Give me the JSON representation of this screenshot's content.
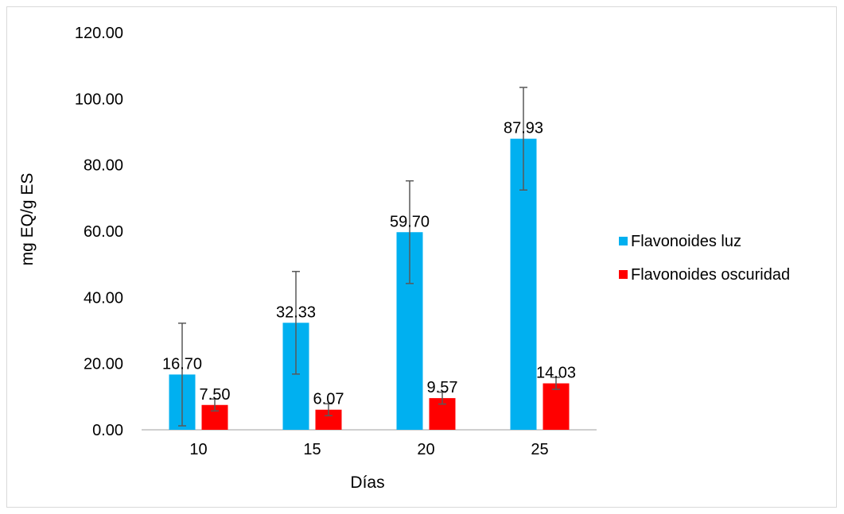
{
  "chart_data": {
    "type": "bar",
    "title": "",
    "xlabel": "Días",
    "ylabel": "mg EQ/g ES",
    "ylim": [
      0,
      120
    ],
    "yticks": [
      "0.00",
      "20.00",
      "40.00",
      "60.00",
      "80.00",
      "100.00",
      "120.00"
    ],
    "categories": [
      "10",
      "15",
      "20",
      "25"
    ],
    "grid": false,
    "legend_position": "right",
    "series": [
      {
        "name": "Flavonoides luz",
        "color": "#00b0f0",
        "values": [
          16.7,
          32.33,
          59.7,
          87.93
        ],
        "labels": [
          "16.70",
          "32.33",
          "59.70",
          "87.93"
        ],
        "error": [
          15.5,
          15.5,
          15.5,
          15.5
        ]
      },
      {
        "name": "Flavonoides oscuridad",
        "color": "#ff0000",
        "values": [
          7.5,
          6.07,
          9.57,
          14.03
        ],
        "labels": [
          "7.50",
          "6.07",
          "9.57",
          "14.03"
        ],
        "error": [
          1.8,
          1.8,
          1.8,
          1.8
        ]
      }
    ]
  }
}
